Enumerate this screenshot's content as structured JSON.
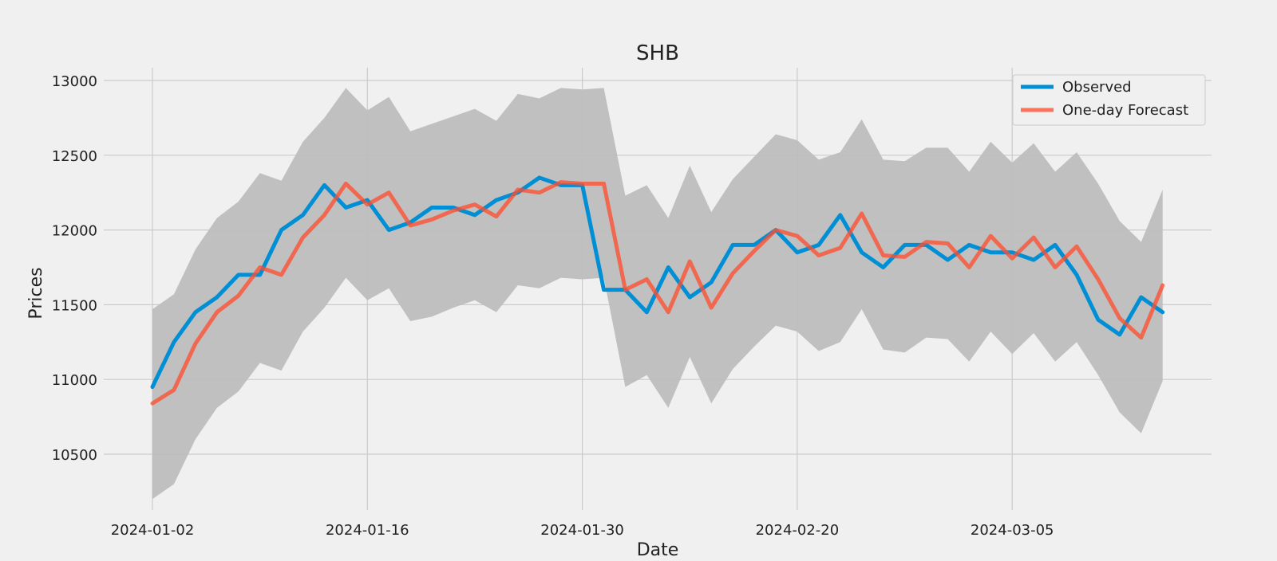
{
  "chart_data": {
    "type": "line",
    "title": "SHB",
    "xlabel": "Date",
    "ylabel": "Prices",
    "ylim": [
      10100,
      13100
    ],
    "y_ticks": [
      10500,
      11000,
      11500,
      12000,
      12500,
      13000
    ],
    "x_ticks": [
      {
        "index": 0,
        "label": "2024-01-02"
      },
      {
        "index": 10,
        "label": "2024-01-16"
      },
      {
        "index": 20,
        "label": "2024-01-30"
      },
      {
        "index": 30,
        "label": "2024-02-20"
      },
      {
        "index": 40,
        "label": "2024-03-05"
      }
    ],
    "grid": true,
    "legend": {
      "position": "top-right"
    },
    "x": [
      "2024-01-02",
      "2024-01-03",
      "2024-01-04",
      "2024-01-05",
      "2024-01-08",
      "2024-01-09",
      "2024-01-10",
      "2024-01-11",
      "2024-01-12",
      "2024-01-15",
      "2024-01-16",
      "2024-01-17",
      "2024-01-18",
      "2024-01-19",
      "2024-01-22",
      "2024-01-23",
      "2024-01-24",
      "2024-01-25",
      "2024-01-26",
      "2024-01-29",
      "2024-01-30",
      "2024-01-31",
      "2024-02-01",
      "2024-02-02",
      "2024-02-05",
      "2024-02-06",
      "2024-02-07",
      "2024-02-15",
      "2024-02-16",
      "2024-02-19",
      "2024-02-20",
      "2024-02-21",
      "2024-02-22",
      "2024-02-23",
      "2024-02-26",
      "2024-02-27",
      "2024-02-28",
      "2024-02-29",
      "2024-03-01",
      "2024-03-04",
      "2024-03-05",
      "2024-03-06",
      "2024-03-07",
      "2024-03-08",
      "2024-03-11",
      "2024-03-12",
      "2024-03-13",
      "2024-03-14"
    ],
    "series": [
      {
        "name": "Observed",
        "color": "#008fd5",
        "values": [
          10950,
          11250,
          11450,
          11550,
          11700,
          11700,
          12000,
          12100,
          12300,
          12150,
          12200,
          12000,
          12050,
          12150,
          12150,
          12100,
          12200,
          12250,
          12350,
          12300,
          12300,
          11600,
          11600,
          11450,
          11750,
          11550,
          11650,
          11900,
          11900,
          12000,
          11850,
          11900,
          12100,
          11850,
          11750,
          11900,
          11900,
          11800,
          11900,
          11850,
          11850,
          11800,
          11900,
          11700,
          11400,
          11300,
          11550,
          11450
        ]
      },
      {
        "name": "One-day Forecast",
        "color": "#fc4f30",
        "values": [
          10840,
          10930,
          11240,
          11450,
          11560,
          11750,
          11700,
          11950,
          12100,
          12310,
          12170,
          12250,
          12030,
          12070,
          12130,
          12170,
          12090,
          12270,
          12250,
          12320,
          12310,
          12310,
          11600,
          11670,
          11450,
          11790,
          11480,
          11710,
          11860,
          12000,
          11960,
          11830,
          11880,
          12110,
          11830,
          11820,
          11920,
          11910,
          11750,
          11960,
          11810,
          11950,
          11750,
          11890,
          11670,
          11410,
          11280,
          11630
        ]
      }
    ],
    "confidence_band": {
      "color": "#bdbdbd",
      "lower": [
        10200,
        10300,
        10600,
        10810,
        10920,
        11110,
        11060,
        11320,
        11480,
        11680,
        11530,
        11610,
        11390,
        11420,
        11480,
        11530,
        11450,
        11630,
        11610,
        11680,
        11670,
        11680,
        10950,
        11030,
        10810,
        11150,
        10840,
        11070,
        11220,
        11360,
        11320,
        11190,
        11250,
        11470,
        11200,
        11180,
        11280,
        11270,
        11120,
        11320,
        11170,
        11310,
        11120,
        11250,
        11030,
        10780,
        10640,
        10990
      ],
      "upper": [
        11470,
        11570,
        11870,
        12080,
        12190,
        12380,
        12330,
        12590,
        12750,
        12950,
        12800,
        12890,
        12660,
        12710,
        12760,
        12810,
        12730,
        12910,
        12880,
        12950,
        12940,
        12950,
        12230,
        12300,
        12080,
        12430,
        12120,
        12340,
        12490,
        12640,
        12600,
        12470,
        12520,
        12740,
        12470,
        12460,
        12550,
        12550,
        12390,
        12590,
        12450,
        12580,
        12390,
        12520,
        12310,
        12060,
        11920,
        12270
      ]
    }
  }
}
